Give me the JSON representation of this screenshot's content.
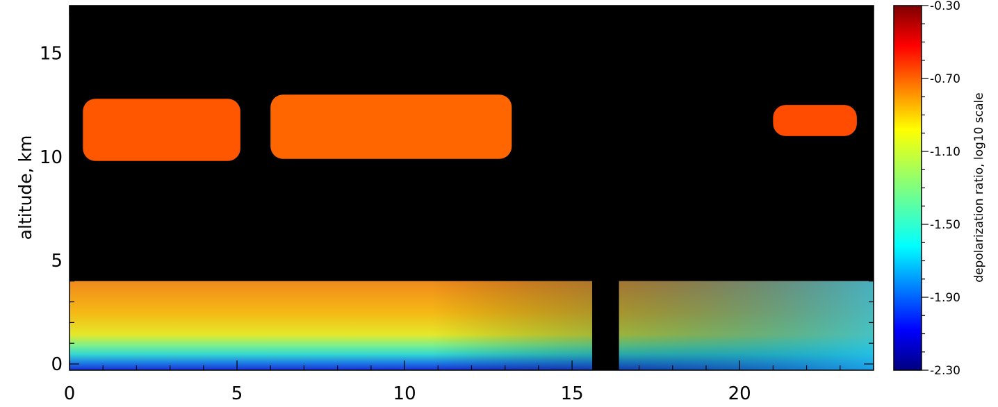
{
  "chart_data": {
    "type": "heatmap",
    "title": "",
    "xlabel": "",
    "ylabel": "altitude, km",
    "xlim": [
      0,
      24
    ],
    "ylim": [
      -0.3,
      17.3
    ],
    "x_ticks": [
      0,
      5,
      10,
      15,
      20
    ],
    "y_ticks": [
      0,
      5,
      10,
      15
    ],
    "background": "#000000",
    "colorbar": {
      "label": "depolarization ratio, log10 scale",
      "range": [
        -2.3,
        -0.3
      ],
      "ticks": [
        "-0.30",
        "-0.70",
        "-1.10",
        "-1.50",
        "-1.90",
        "-2.30"
      ],
      "colormap": "jet"
    },
    "features": [
      {
        "name": "cirrus layer",
        "x": [
          0.4,
          5.1
        ],
        "alt": [
          9.8,
          12.8
        ],
        "log10_depol": -0.72
      },
      {
        "name": "cirrus layer",
        "x": [
          6.0,
          13.2
        ],
        "alt": [
          9.9,
          13.0
        ],
        "log10_depol": -0.75
      },
      {
        "name": "cirrus layer",
        "x": [
          21.0,
          23.5
        ],
        "alt": [
          11.0,
          12.5
        ],
        "log10_depol": -0.7
      },
      {
        "name": "aerosol layer",
        "x": [
          0,
          24
        ],
        "alt": [
          0,
          4.0
        ],
        "log10_depol": -1.15
      },
      {
        "name": "data gap",
        "x": [
          15.6,
          16.4
        ],
        "alt": [
          0,
          6.0
        ]
      }
    ]
  }
}
